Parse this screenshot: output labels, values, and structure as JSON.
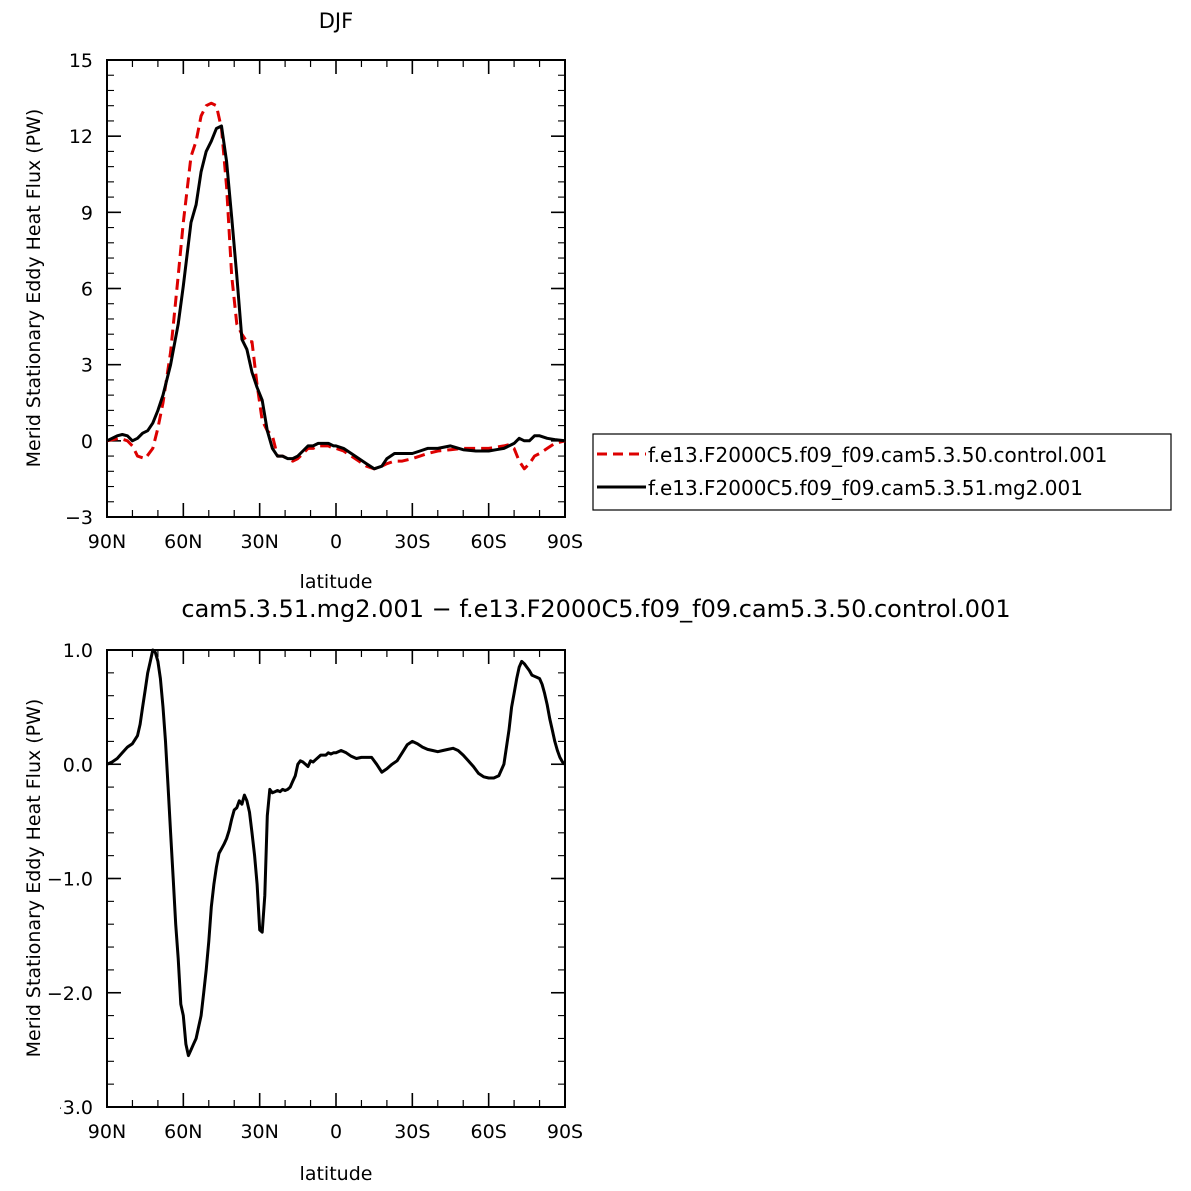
{
  "chart_data": [
    {
      "type": "line",
      "title": "DJF",
      "xlabel": "latitude",
      "ylabel": "Merid Stationary Eddy Heat Flux (PW)",
      "xlim": [
        90,
        -90
      ],
      "ylim": [
        -3,
        15
      ],
      "x_ticks": [
        {
          "value": 90,
          "label": "90N"
        },
        {
          "value": 60,
          "label": "60N"
        },
        {
          "value": 30,
          "label": "30N"
        },
        {
          "value": 0,
          "label": "0"
        },
        {
          "value": -30,
          "label": "30S"
        },
        {
          "value": -60,
          "label": "60S"
        },
        {
          "value": -90,
          "label": "90S"
        }
      ],
      "y_ticks": [
        {
          "value": 15,
          "label": "15"
        },
        {
          "value": 12,
          "label": "12"
        },
        {
          "value": 9,
          "label": "9"
        },
        {
          "value": 6,
          "label": "6"
        },
        {
          "value": 3,
          "label": "3"
        },
        {
          "value": 0,
          "label": "0"
        },
        {
          "value": -3,
          "label": "−3"
        }
      ],
      "legend_position": "right",
      "series": [
        {
          "name": "f.e13.F2000C5.f09_f09.cam5.3.50.control.001",
          "color": "#dd0000",
          "dash": "dashed",
          "x": [
            90,
            85,
            82,
            80,
            78,
            75,
            72,
            70,
            68,
            65,
            62,
            60,
            57,
            55,
            53,
            51,
            49,
            47,
            45,
            43,
            41,
            39,
            37,
            35,
            33,
            31,
            29,
            27,
            25,
            23,
            21,
            19,
            17,
            15,
            13,
            11,
            9,
            7,
            5,
            3,
            1,
            0,
            -3,
            -6,
            -9,
            -12,
            -15,
            -18,
            -20,
            -23,
            -26,
            -30,
            -33,
            -36,
            -40,
            -45,
            -50,
            -55,
            -60,
            -63,
            -66,
            -68,
            -70,
            -72,
            -74,
            -76,
            -78,
            -80,
            -83,
            -86,
            -90
          ],
          "y": [
            0,
            0.1,
            0,
            -0.2,
            -0.6,
            -0.7,
            -0.3,
            0.5,
            1.5,
            3.5,
            6.5,
            8.6,
            11.2,
            11.8,
            12.8,
            13.2,
            13.3,
            13.2,
            12.3,
            10,
            6.5,
            4.6,
            4.2,
            3.9,
            3.9,
            2.2,
            0.8,
            0.4,
            0.2,
            -0.6,
            -0.6,
            -0.7,
            -0.8,
            -0.7,
            -0.5,
            -0.3,
            -0.3,
            -0.2,
            -0.2,
            -0.2,
            -0.3,
            -0.3,
            -0.4,
            -0.6,
            -0.8,
            -1.0,
            -1.1,
            -1.0,
            -0.9,
            -0.8,
            -0.8,
            -0.7,
            -0.6,
            -0.5,
            -0.4,
            -0.35,
            -0.3,
            -0.3,
            -0.3,
            -0.25,
            -0.2,
            -0.15,
            -0.3,
            -0.8,
            -1.1,
            -0.9,
            -0.6,
            -0.5,
            -0.3,
            -0.1,
            0
          ]
        },
        {
          "name": "f.e13.F2000C5.f09_f09.cam5.3.51.mg2.001",
          "color": "#000000",
          "dash": "solid",
          "x": [
            90,
            86,
            84,
            82,
            80,
            78,
            76,
            74,
            72,
            70,
            68,
            65,
            62,
            60,
            57,
            55,
            53,
            51,
            49,
            47,
            45,
            43,
            41,
            39,
            37,
            35,
            33,
            31,
            29,
            27,
            25,
            23,
            21,
            19,
            17,
            15,
            13,
            11,
            9,
            7,
            5,
            3,
            1,
            0,
            -3,
            -6,
            -9,
            -12,
            -15,
            -18,
            -20,
            -23,
            -26,
            -30,
            -33,
            -36,
            -40,
            -45,
            -50,
            -55,
            -60,
            -63,
            -66,
            -68,
            -70,
            -72,
            -74,
            -76,
            -78,
            -80,
            -83,
            -86,
            -90
          ],
          "y": [
            0,
            0.2,
            0.25,
            0.2,
            0,
            0.1,
            0.3,
            0.4,
            0.7,
            1.2,
            1.8,
            3,
            4.6,
            6.1,
            8.6,
            9.3,
            10.6,
            11.4,
            11.8,
            12.3,
            12.4,
            11,
            8.8,
            6.5,
            4,
            3.6,
            2.7,
            2.1,
            1.6,
            0.4,
            -0.3,
            -0.6,
            -0.6,
            -0.7,
            -0.7,
            -0.6,
            -0.4,
            -0.2,
            -0.2,
            -0.1,
            -0.1,
            -0.1,
            -0.2,
            -0.2,
            -0.3,
            -0.5,
            -0.7,
            -0.9,
            -1.1,
            -1.0,
            -0.7,
            -0.5,
            -0.5,
            -0.5,
            -0.4,
            -0.3,
            -0.3,
            -0.2,
            -0.35,
            -0.4,
            -0.4,
            -0.35,
            -0.3,
            -0.2,
            -0.1,
            0.1,
            0,
            0,
            0.2,
            0.2,
            0.1,
            0.05,
            0
          ]
        }
      ]
    },
    {
      "type": "line",
      "title": "cam5.3.51.mg2.001 − f.e13.F2000C5.f09_f09.cam5.3.50.control.001",
      "xlabel": "latitude",
      "ylabel": "Merid Stationary Eddy Heat Flux (PW)",
      "xlim": [
        90,
        -90
      ],
      "ylim": [
        -3,
        1
      ],
      "x_ticks": [
        {
          "value": 90,
          "label": "90N"
        },
        {
          "value": 60,
          "label": "60N"
        },
        {
          "value": 30,
          "label": "30N"
        },
        {
          "value": 0,
          "label": "0"
        },
        {
          "value": -30,
          "label": "30S"
        },
        {
          "value": -60,
          "label": "60S"
        },
        {
          "value": -90,
          "label": "90S"
        }
      ],
      "y_ticks": [
        {
          "value": 1,
          "label": "1.0"
        },
        {
          "value": 0,
          "label": "0.0"
        },
        {
          "value": -1,
          "label": "−1.0"
        },
        {
          "value": -2,
          "label": "−2.0"
        },
        {
          "value": -3,
          "label": "−3.0"
        }
      ],
      "series": [
        {
          "color": "#000000",
          "dash": "solid",
          "x": [
            90,
            88,
            86,
            84,
            82,
            80,
            78,
            77,
            76,
            75,
            74,
            73,
            72,
            71,
            70,
            69,
            68,
            67,
            66,
            65,
            64,
            63,
            62,
            61,
            60,
            59,
            58,
            57,
            56,
            55,
            54,
            53,
            52,
            51,
            50,
            49,
            48,
            47,
            46,
            45,
            44,
            43,
            42,
            41,
            40,
            39,
            38,
            37,
            36,
            35,
            34,
            33,
            32,
            31,
            30,
            29,
            28,
            27,
            26,
            25,
            24,
            23,
            22,
            21,
            20,
            19,
            18,
            17,
            16,
            15,
            14,
            13,
            12,
            11,
            10,
            9,
            8,
            7,
            6,
            5,
            4,
            3,
            2,
            1,
            0,
            -2,
            -4,
            -6,
            -8,
            -10,
            -12,
            -14,
            -16,
            -18,
            -20,
            -22,
            -24,
            -26,
            -28,
            -30,
            -32,
            -34,
            -36,
            -38,
            -40,
            -42,
            -44,
            -46,
            -48,
            -50,
            -52,
            -54,
            -56,
            -58,
            -60,
            -62,
            -64,
            -66,
            -68,
            -69,
            -70,
            -71,
            -72,
            -73,
            -74,
            -75,
            -76,
            -77,
            -78,
            -79,
            -80,
            -81,
            -82,
            -83,
            -84,
            -85,
            -86,
            -87,
            -88,
            -89,
            -90
          ],
          "y": [
            0,
            0.02,
            0.05,
            0.1,
            0.15,
            0.18,
            0.25,
            0.35,
            0.5,
            0.65,
            0.8,
            0.9,
            1.0,
            0.98,
            0.9,
            0.75,
            0.5,
            0.2,
            -0.2,
            -0.6,
            -1.0,
            -1.4,
            -1.7,
            -2.1,
            -2.2,
            -2.45,
            -2.55,
            -2.5,
            -2.45,
            -2.4,
            -2.3,
            -2.2,
            -2.0,
            -1.8,
            -1.55,
            -1.25,
            -1.05,
            -0.9,
            -0.78,
            -0.74,
            -0.7,
            -0.65,
            -0.58,
            -0.48,
            -0.4,
            -0.38,
            -0.32,
            -0.35,
            -0.27,
            -0.32,
            -0.42,
            -0.6,
            -0.8,
            -1.05,
            -1.45,
            -1.47,
            -1.15,
            -0.45,
            -0.22,
            -0.25,
            -0.24,
            -0.23,
            -0.24,
            -0.22,
            -0.23,
            -0.22,
            -0.2,
            -0.15,
            -0.1,
            0.0,
            0.03,
            0.02,
            0.0,
            -0.02,
            0.03,
            0.02,
            0.04,
            0.06,
            0.08,
            0.08,
            0.08,
            0.1,
            0.09,
            0.1,
            0.1,
            0.12,
            0.1,
            0.07,
            0.05,
            0.06,
            0.06,
            0.06,
            0.0,
            -0.07,
            -0.04,
            0.0,
            0.03,
            0.1,
            0.17,
            0.2,
            0.18,
            0.15,
            0.13,
            0.12,
            0.11,
            0.12,
            0.13,
            0.14,
            0.12,
            0.08,
            0.03,
            -0.02,
            -0.08,
            -0.11,
            -0.12,
            -0.12,
            -0.1,
            0.0,
            0.3,
            0.5,
            0.62,
            0.75,
            0.85,
            0.9,
            0.88,
            0.85,
            0.82,
            0.78,
            0.77,
            0.76,
            0.75,
            0.7,
            0.62,
            0.52,
            0.4,
            0.3,
            0.2,
            0.12,
            0.06,
            0.02,
            0
          ]
        }
      ]
    }
  ]
}
